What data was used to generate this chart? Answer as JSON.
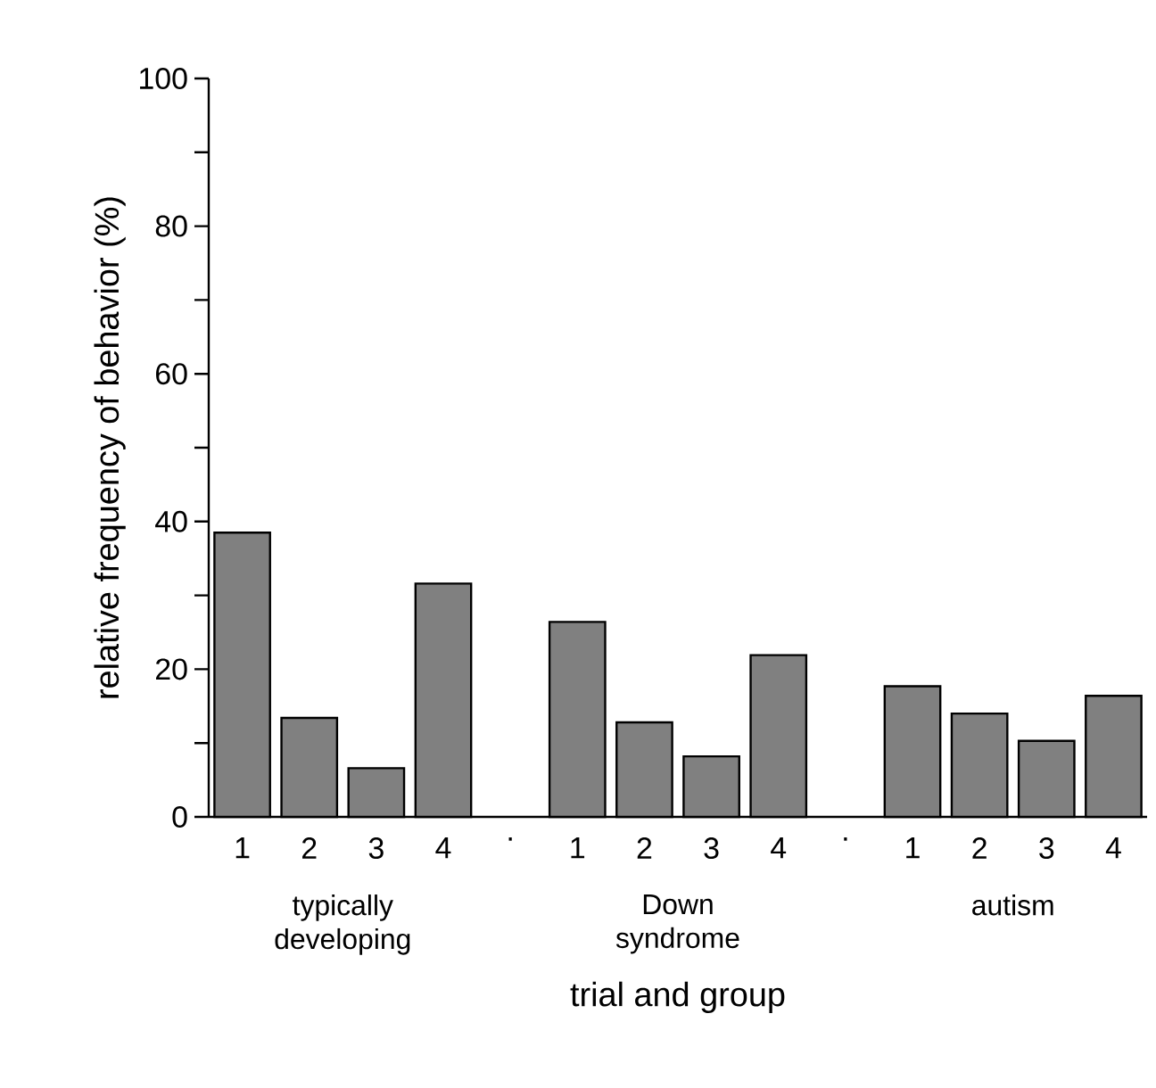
{
  "chart_data": {
    "type": "bar",
    "xlabel": "trial and group",
    "ylabel": "relative frequency of behavior (%)",
    "categories": [
      "1",
      "2",
      "3",
      "4",
      ".",
      "1",
      "2",
      "3",
      "4",
      ".",
      "1",
      "2",
      "3",
      "4"
    ],
    "values": [
      38.5,
      13.4,
      6.6,
      31.6,
      null,
      26.4,
      12.8,
      8.2,
      21.9,
      null,
      17.7,
      14.0,
      10.3,
      16.4
    ],
    "color": "#808080",
    "ylim": [
      0,
      100
    ],
    "yticks": [
      0,
      {
        "value": 10,
        "label": null
      },
      20,
      {
        "value": 30,
        "label": null
      },
      40,
      {
        "value": 50,
        "label": null
      },
      60,
      {
        "value": 70,
        "label": null
      },
      80,
      {
        "value": 90,
        "label": null
      },
      100
    ],
    "annotations": [
      "typically developing",
      "Down syndrome",
      "autism"
    ]
  }
}
